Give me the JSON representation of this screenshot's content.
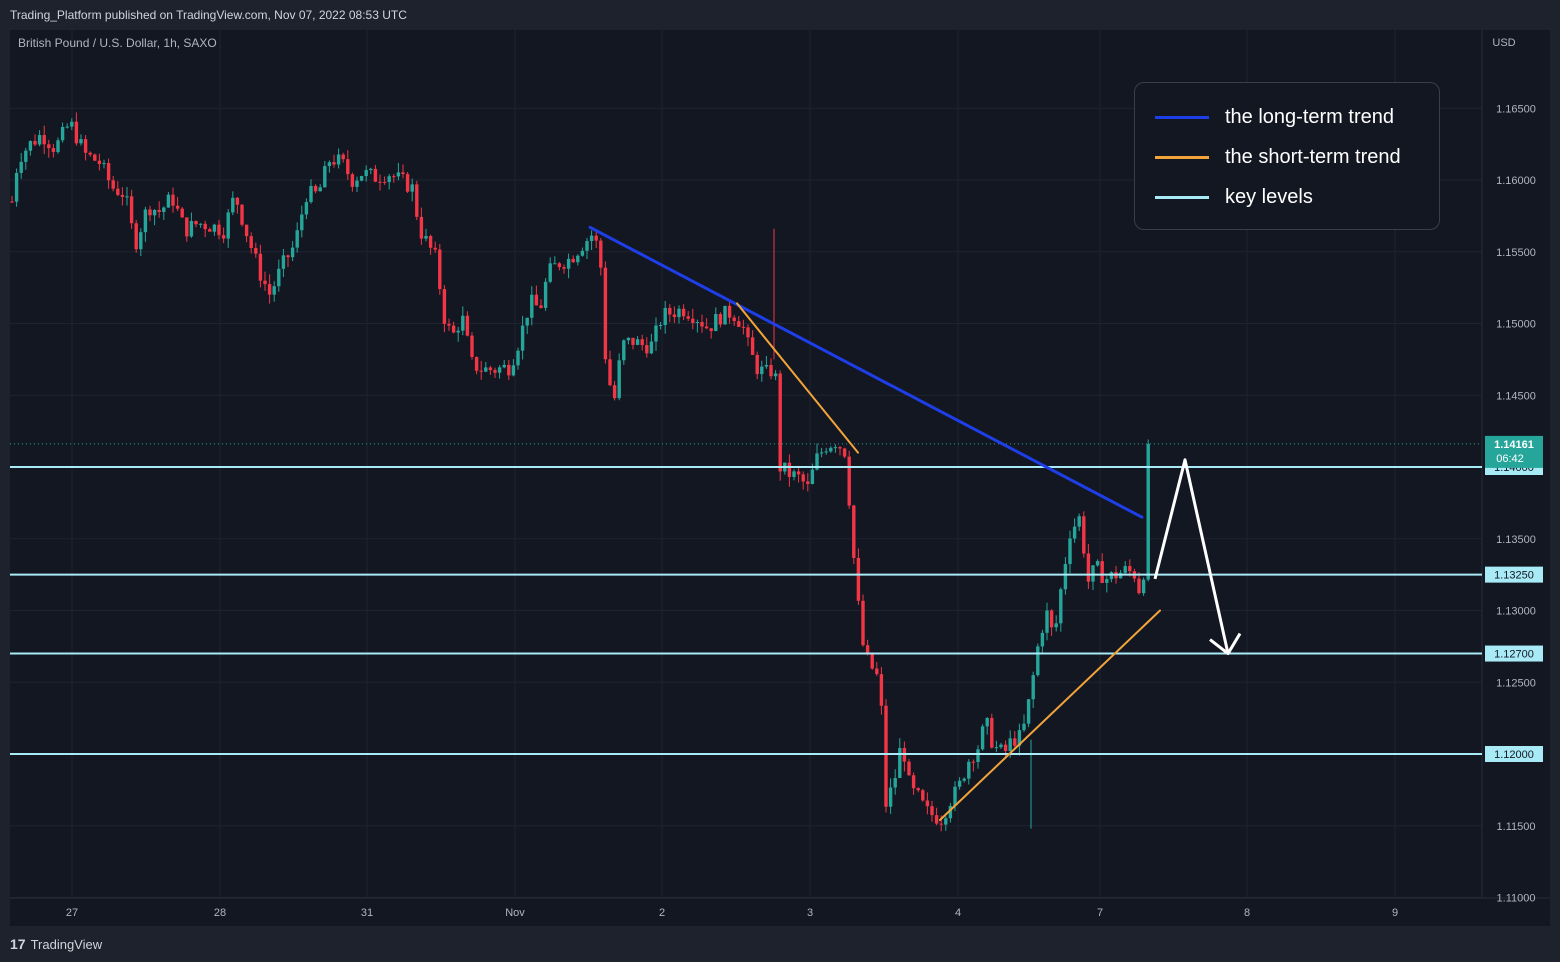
{
  "header": {
    "published_by": "Trading_Platform published on TradingView.com, Nov 07, 2022 08:53 UTC"
  },
  "symbol": {
    "title": "British Pound / U.S. Dollar, 1h, SAXO"
  },
  "footer": {
    "brand": "TradingView",
    "logo_glyph": "17"
  },
  "legend": {
    "items": [
      {
        "label": "the long-term trend",
        "color": "#1e3ee8"
      },
      {
        "label": "the short-term trend",
        "color": "#f2a33a"
      },
      {
        "label": "key levels",
        "color": "#a8eaf5"
      }
    ]
  },
  "colors": {
    "up": "#26a69a",
    "down": "#f23645",
    "background": "#131722",
    "price_tag": "#26a69a"
  },
  "chart_data": {
    "type": "candlestick",
    "currency_label": "USD",
    "y_ticks": [
      "1.16500",
      "1.16000",
      "1.15500",
      "1.15000",
      "1.14500",
      "1.13500",
      "1.13000",
      "1.12500",
      "1.11500",
      "1.11000"
    ],
    "ylim": [
      1.11,
      1.1685
    ],
    "x_ticks": [
      "27",
      "28",
      "31",
      "Nov",
      "2",
      "3",
      "4",
      "7",
      "8",
      "9"
    ],
    "last_price": {
      "value": "1.14161",
      "countdown": "06:42"
    },
    "key_levels": [
      {
        "value": 1.14,
        "label": "1.14000"
      },
      {
        "value": 1.1325,
        "label": "1.13250"
      },
      {
        "value": 1.127,
        "label": "1.12700"
      },
      {
        "value": 1.12,
        "label": "1.12000"
      }
    ],
    "price_path": [
      [
        10,
        1.1575
      ],
      [
        18,
        1.1615
      ],
      [
        30,
        1.1625
      ],
      [
        42,
        1.1632
      ],
      [
        55,
        1.1622
      ],
      [
        70,
        1.164
      ],
      [
        85,
        1.1618
      ],
      [
        100,
        1.1612
      ],
      [
        112,
        1.1595
      ],
      [
        125,
        1.159
      ],
      [
        135,
        1.1555
      ],
      [
        148,
        1.1582
      ],
      [
        160,
        1.1578
      ],
      [
        172,
        1.1588
      ],
      [
        185,
        1.1565
      ],
      [
        198,
        1.157
      ],
      [
        212,
        1.1568
      ],
      [
        224,
        1.1565
      ],
      [
        235,
        1.159
      ],
      [
        248,
        1.156
      ],
      [
        260,
        1.1535
      ],
      [
        270,
        1.152
      ],
      [
        282,
        1.154
      ],
      [
        295,
        1.1555
      ],
      [
        306,
        1.159
      ],
      [
        318,
        1.159
      ],
      [
        330,
        1.1615
      ],
      [
        342,
        1.1612
      ],
      [
        352,
        1.16
      ],
      [
        362,
        1.1605
      ],
      [
        375,
        1.1602
      ],
      [
        388,
        1.1605
      ],
      [
        400,
        1.16
      ],
      [
        412,
        1.1595
      ],
      [
        420,
        1.1565
      ],
      [
        428,
        1.1555
      ],
      [
        436,
        1.1545
      ],
      [
        444,
        1.1505
      ],
      [
        452,
        1.149
      ],
      [
        462,
        1.1505
      ],
      [
        472,
        1.1472
      ],
      [
        482,
        1.1468
      ],
      [
        495,
        1.1468
      ],
      [
        510,
        1.147
      ],
      [
        520,
        1.149
      ],
      [
        530,
        1.1515
      ],
      [
        540,
        1.151
      ],
      [
        548,
        1.1535
      ],
      [
        558,
        1.1542
      ],
      [
        570,
        1.1545
      ],
      [
        582,
        1.1555
      ],
      [
        592,
        1.1562
      ],
      [
        600,
        1.155
      ],
      [
        606,
        1.147
      ],
      [
        614,
        1.1445
      ],
      [
        622,
        1.1485
      ],
      [
        632,
        1.1488
      ],
      [
        642,
        1.1485
      ],
      [
        652,
        1.1485
      ],
      [
        662,
        1.1505
      ],
      [
        672,
        1.1508
      ],
      [
        684,
        1.151
      ],
      [
        696,
        1.1505
      ],
      [
        708,
        1.1497
      ],
      [
        720,
        1.1505
      ],
      [
        732,
        1.1508
      ],
      [
        742,
        1.15
      ],
      [
        750,
        1.148
      ],
      [
        758,
        1.1468
      ],
      [
        768,
        1.1465
      ],
      [
        775,
        1.147
      ],
      [
        780,
        1.14
      ],
      [
        790,
        1.1395
      ],
      [
        800,
        1.1392
      ],
      [
        808,
        1.1385
      ],
      [
        816,
        1.1405
      ],
      [
        826,
        1.1415
      ],
      [
        836,
        1.1418
      ],
      [
        846,
        1.141
      ],
      [
        852,
        1.135
      ],
      [
        858,
        1.1305
      ],
      [
        864,
        1.127
      ],
      [
        872,
        1.126
      ],
      [
        880,
        1.125
      ],
      [
        886,
        1.1165
      ],
      [
        894,
        1.118
      ],
      [
        902,
        1.121
      ],
      [
        910,
        1.1175
      ],
      [
        918,
        1.117
      ],
      [
        926,
        1.116
      ],
      [
        934,
        1.1157
      ],
      [
        942,
        1.1155
      ],
      [
        950,
        1.1168
      ],
      [
        958,
        1.1175
      ],
      [
        968,
        1.1195
      ],
      [
        978,
        1.1205
      ],
      [
        986,
        1.1222
      ],
      [
        994,
        1.1205
      ],
      [
        1004,
        1.12
      ],
      [
        1012,
        1.121
      ],
      [
        1022,
        1.1212
      ],
      [
        1030,
        1.124
      ],
      [
        1038,
        1.1275
      ],
      [
        1046,
        1.13
      ],
      [
        1054,
        1.128
      ],
      [
        1062,
        1.132
      ],
      [
        1070,
        1.1355
      ],
      [
        1080,
        1.1365
      ],
      [
        1088,
        1.132
      ],
      [
        1096,
        1.133
      ],
      [
        1106,
        1.1322
      ],
      [
        1116,
        1.1325
      ],
      [
        1126,
        1.1328
      ],
      [
        1136,
        1.1325
      ],
      [
        1142,
        1.1305
      ],
      [
        1150,
        1.14161
      ]
    ],
    "annotations": {
      "long_term_trend": [
        [
          590,
          1.1567
        ],
        [
          1142,
          1.1365
        ]
      ],
      "short_term_trend_down": [
        [
          737,
          1.1514
        ],
        [
          858,
          1.141
        ]
      ],
      "short_term_trend_up": [
        [
          940,
          1.1154
        ],
        [
          1160,
          1.13
        ]
      ],
      "projection_arrow": [
        [
          1155,
          1.1322
        ],
        [
          1185,
          1.1405
        ],
        [
          1228,
          1.127
        ]
      ]
    }
  }
}
